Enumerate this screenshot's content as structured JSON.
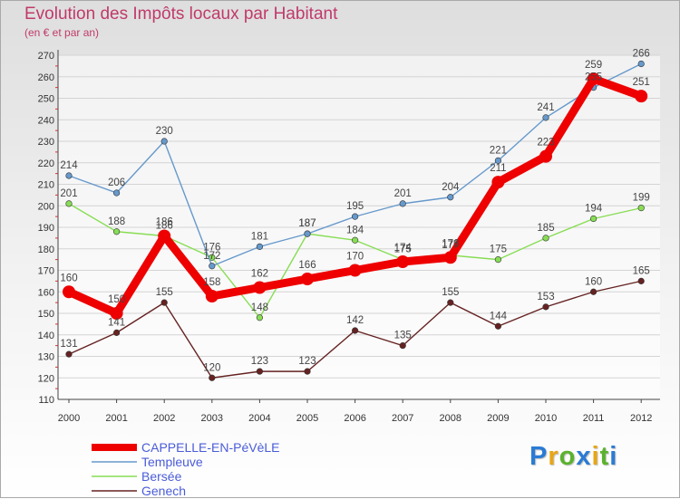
{
  "header": {
    "title": "Evolution des Impôts locaux par Habitant",
    "subtitle": "(en € et par an)"
  },
  "brand": {
    "text": "Proxiti",
    "letter_colors": [
      "#2b7bd4",
      "#e8a614",
      "#5ab22e",
      "#2b7bd4",
      "#e8a614",
      "#5ab22e",
      "#2b7bd4"
    ]
  },
  "chart_data": {
    "type": "line",
    "categories": [
      "2000",
      "2001",
      "2002",
      "2003",
      "2004",
      "2005",
      "2006",
      "2007",
      "2008",
      "2009",
      "2010",
      "2011",
      "2012"
    ],
    "ylim": [
      110,
      270
    ],
    "yticks": [
      "110",
      "120",
      "130",
      "140",
      "150",
      "160",
      "170",
      "180",
      "190",
      "200",
      "210",
      "220",
      "230",
      "240",
      "250",
      "260",
      "270"
    ],
    "grid": "horizontal",
    "legend": "bottom-left",
    "series": [
      {
        "name": "CAPPELLE-EN-PéVèLE",
        "color": "#ee0000",
        "values": [
          160,
          150,
          186,
          158,
          162,
          166,
          170,
          174,
          176,
          211,
          223,
          259,
          251
        ]
      },
      {
        "name": "Templeuve",
        "color": "#6699cc",
        "values": [
          214,
          206,
          230,
          172,
          181,
          187,
          195,
          201,
          204,
          221,
          241,
          255,
          266
        ]
      },
      {
        "name": "Bersée",
        "color": "#88dd55",
        "values": [
          201,
          188,
          186,
          176,
          148,
          187,
          184,
          175,
          177,
          175,
          185,
          194,
          199
        ]
      },
      {
        "name": "Genech",
        "color": "#662222",
        "values": [
          131,
          141,
          155,
          120,
          123,
          123,
          142,
          135,
          155,
          144,
          153,
          160,
          165
        ]
      }
    ]
  }
}
